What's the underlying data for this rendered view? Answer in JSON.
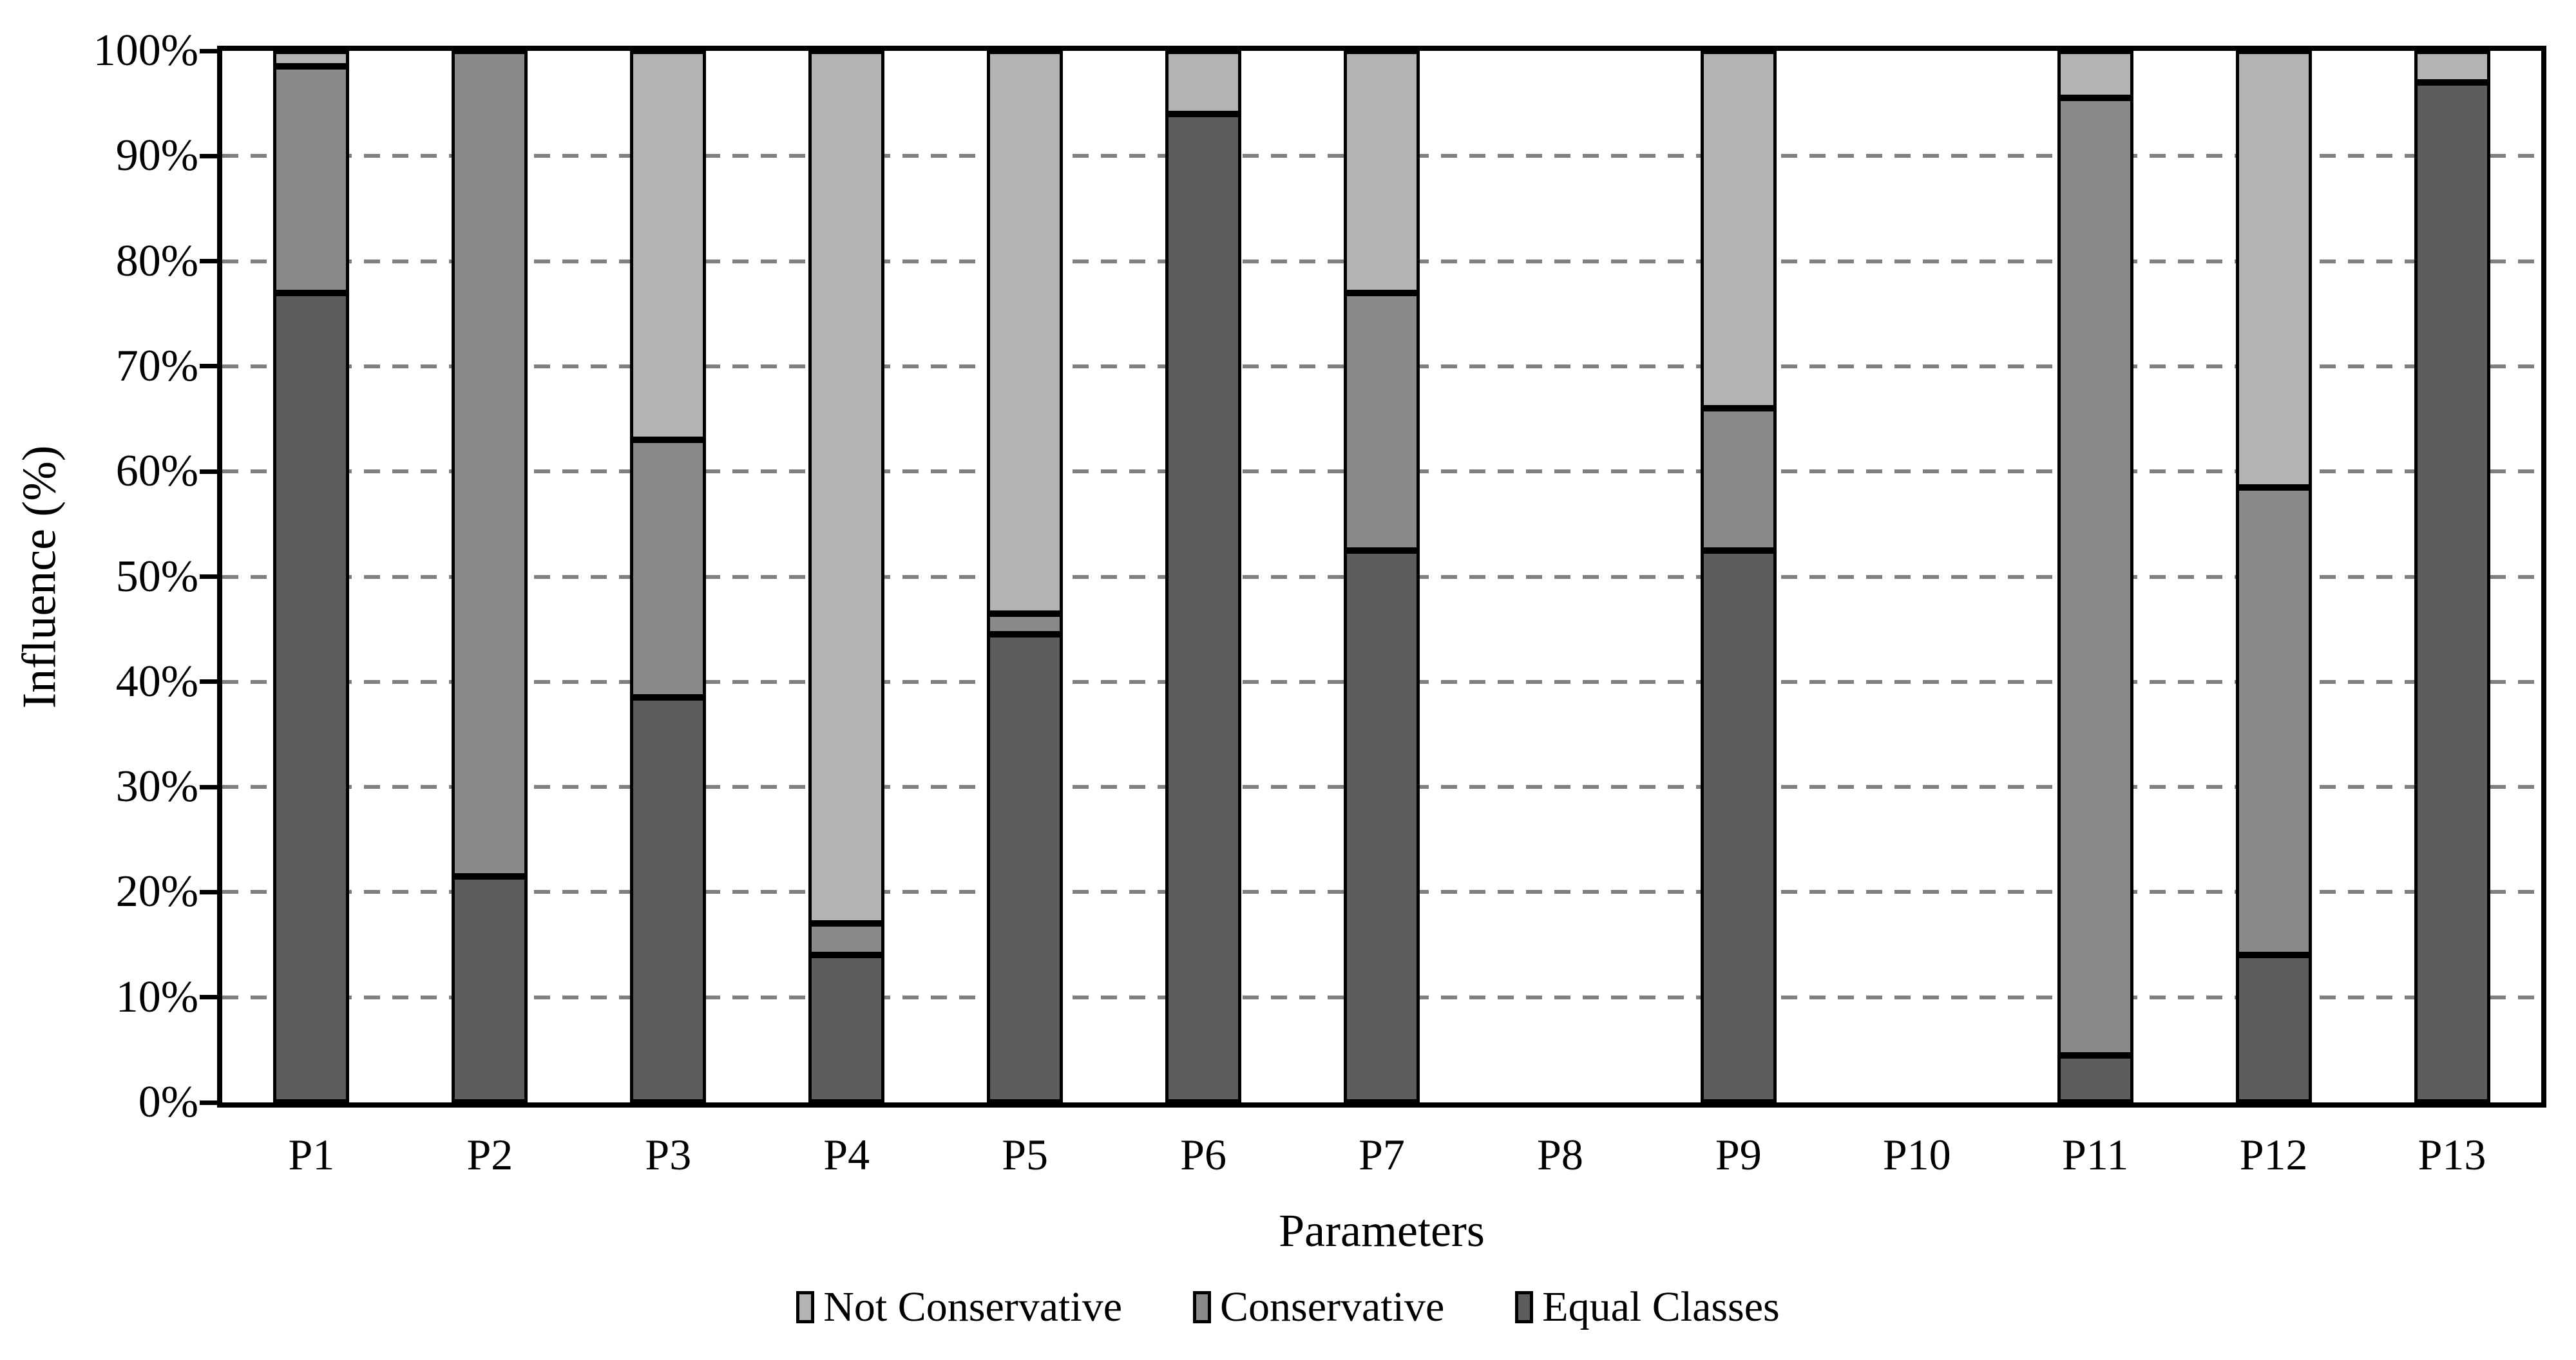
{
  "chart_data": {
    "type": "bar",
    "subtype": "stacked-100-percent",
    "title": "",
    "xlabel": "Parameters",
    "ylabel": "Influence (%)",
    "categories": [
      "P1",
      "P2",
      "P3",
      "P4",
      "P5",
      "P6",
      "P7",
      "P8",
      "P9",
      "P10",
      "P11",
      "P12",
      "P13"
    ],
    "series": [
      {
        "name": "Not Conservative",
        "color": "#b3b3b3",
        "values": [
          1.5,
          0,
          37,
          83,
          53.5,
          6,
          23,
          0,
          34,
          0,
          4.5,
          41.5,
          3
        ]
      },
      {
        "name": "Conservative",
        "color": "#8a8a8a",
        "values": [
          21.5,
          78.5,
          24.5,
          3,
          2,
          0,
          24.5,
          0,
          13.5,
          0,
          91,
          44.5,
          0
        ]
      },
      {
        "name": "Equal Classes",
        "color": "#5d5d5d",
        "values": [
          77,
          21.5,
          38.5,
          14,
          44.5,
          94,
          52.5,
          0,
          52.5,
          0,
          4.5,
          14,
          97
        ]
      }
    ],
    "stack_order_bottom_to_top": [
      "Equal Classes",
      "Conservative",
      "Not Conservative"
    ],
    "y_ticks": [
      "0%",
      "10%",
      "20%",
      "30%",
      "40%",
      "50%",
      "60%",
      "70%",
      "80%",
      "90%",
      "100%"
    ],
    "y_tick_values": [
      0,
      10,
      20,
      30,
      40,
      50,
      60,
      70,
      80,
      90,
      100
    ],
    "ylim": [
      0,
      100
    ],
    "grid": "horizontal-dashed",
    "gridline_color": "#808080",
    "axis_color": "#000000",
    "legend_position": "bottom",
    "legend_entries": [
      "Not Conservative",
      "Conservative",
      "Equal Classes"
    ]
  }
}
